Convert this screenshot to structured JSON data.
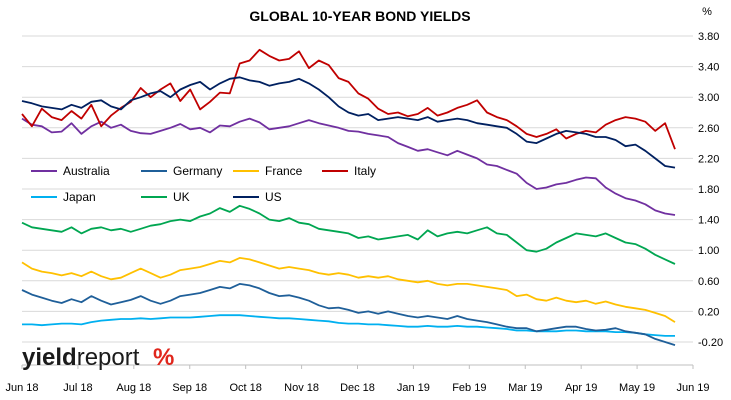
{
  "chart_data": {
    "type": "line",
    "title": "GLOBAL 10-YEAR BOND YIELDS",
    "unit": "%",
    "y_axis_position": "right",
    "ylim": [
      -0.4,
      3.9
    ],
    "y_ticks": [
      "3.80",
      "3.40",
      "3.00",
      "2.60",
      "2.20",
      "1.80",
      "1.40",
      "1.00",
      "0.60",
      "0.20",
      "-0.20"
    ],
    "x_tick_labels": [
      "Jun 18",
      "Jul 18",
      "Aug 18",
      "Sep 18",
      "Oct 18",
      "Nov 18",
      "Dec 18",
      "Jan 19",
      "Feb 19",
      "Mar 19",
      "Apr 19",
      "May 19",
      "Jun 19"
    ],
    "grid": "horizontal",
    "legend_position": "upper-left",
    "series": [
      {
        "name": "Australia",
        "color": "#7030A0",
        "values": [
          2.72,
          2.64,
          2.62,
          2.54,
          2.55,
          2.66,
          2.52,
          2.62,
          2.68,
          2.6,
          2.64,
          2.56,
          2.53,
          2.52,
          2.56,
          2.6,
          2.65,
          2.58,
          2.6,
          2.54,
          2.63,
          2.62,
          2.68,
          2.72,
          2.67,
          2.58,
          2.6,
          2.62,
          2.66,
          2.7,
          2.66,
          2.63,
          2.6,
          2.56,
          2.55,
          2.52,
          2.5,
          2.48,
          2.4,
          2.35,
          2.3,
          2.32,
          2.28,
          2.24,
          2.3,
          2.25,
          2.2,
          2.12,
          2.1,
          2.05,
          2.0,
          1.88,
          1.8,
          1.82,
          1.86,
          1.88,
          1.92,
          1.95,
          1.94,
          1.82,
          1.74,
          1.68,
          1.65,
          1.6,
          1.52,
          1.48,
          1.46
        ]
      },
      {
        "name": "Germany",
        "color": "#1F5F99",
        "values": [
          0.48,
          0.42,
          0.38,
          0.34,
          0.31,
          0.36,
          0.32,
          0.4,
          0.34,
          0.29,
          0.32,
          0.35,
          0.4,
          0.34,
          0.3,
          0.34,
          0.4,
          0.42,
          0.44,
          0.48,
          0.52,
          0.5,
          0.56,
          0.54,
          0.5,
          0.44,
          0.4,
          0.41,
          0.38,
          0.34,
          0.28,
          0.24,
          0.25,
          0.22,
          0.18,
          0.2,
          0.17,
          0.2,
          0.17,
          0.14,
          0.12,
          0.14,
          0.12,
          0.1,
          0.14,
          0.1,
          0.08,
          0.06,
          0.03,
          0.0,
          -0.02,
          -0.02,
          -0.06,
          -0.04,
          -0.02,
          0.0,
          0.0,
          -0.03,
          -0.05,
          -0.04,
          -0.02,
          -0.06,
          -0.08,
          -0.1,
          -0.16,
          -0.2,
          -0.24
        ]
      },
      {
        "name": "France",
        "color": "#FFC000",
        "values": [
          0.84,
          0.76,
          0.72,
          0.7,
          0.67,
          0.7,
          0.66,
          0.72,
          0.66,
          0.62,
          0.64,
          0.7,
          0.76,
          0.7,
          0.64,
          0.68,
          0.74,
          0.76,
          0.78,
          0.82,
          0.86,
          0.84,
          0.9,
          0.88,
          0.84,
          0.8,
          0.76,
          0.78,
          0.76,
          0.74,
          0.7,
          0.68,
          0.7,
          0.68,
          0.64,
          0.66,
          0.64,
          0.66,
          0.62,
          0.6,
          0.58,
          0.6,
          0.56,
          0.54,
          0.56,
          0.56,
          0.54,
          0.52,
          0.5,
          0.48,
          0.4,
          0.42,
          0.36,
          0.34,
          0.38,
          0.34,
          0.32,
          0.34,
          0.3,
          0.33,
          0.29,
          0.26,
          0.24,
          0.22,
          0.18,
          0.14,
          0.06
        ]
      },
      {
        "name": "Italy",
        "color": "#C00000",
        "values": [
          2.78,
          2.62,
          2.85,
          2.74,
          2.7,
          2.82,
          2.72,
          2.9,
          2.62,
          2.76,
          2.86,
          2.94,
          3.12,
          3.0,
          3.1,
          3.18,
          2.95,
          3.1,
          2.84,
          2.94,
          3.06,
          3.05,
          3.44,
          3.48,
          3.62,
          3.54,
          3.48,
          3.5,
          3.6,
          3.38,
          3.48,
          3.42,
          3.25,
          3.2,
          3.05,
          2.98,
          2.85,
          2.78,
          2.8,
          2.75,
          2.78,
          2.86,
          2.76,
          2.8,
          2.86,
          2.9,
          2.96,
          2.8,
          2.74,
          2.7,
          2.62,
          2.52,
          2.48,
          2.52,
          2.58,
          2.46,
          2.52,
          2.56,
          2.54,
          2.64,
          2.7,
          2.74,
          2.72,
          2.68,
          2.56,
          2.66,
          2.32
        ]
      },
      {
        "name": "Japan",
        "color": "#00B0F0",
        "values": [
          0.03,
          0.03,
          0.02,
          0.03,
          0.04,
          0.04,
          0.03,
          0.06,
          0.08,
          0.09,
          0.1,
          0.1,
          0.11,
          0.1,
          0.11,
          0.12,
          0.12,
          0.12,
          0.13,
          0.14,
          0.15,
          0.15,
          0.15,
          0.14,
          0.13,
          0.12,
          0.11,
          0.11,
          0.1,
          0.09,
          0.08,
          0.07,
          0.05,
          0.04,
          0.04,
          0.03,
          0.03,
          0.02,
          0.01,
          0.0,
          0.0,
          0.01,
          0.0,
          0.0,
          0.01,
          0.0,
          0.0,
          -0.01,
          -0.02,
          -0.03,
          -0.05,
          -0.05,
          -0.06,
          -0.06,
          -0.06,
          -0.05,
          -0.05,
          -0.06,
          -0.06,
          -0.06,
          -0.07,
          -0.07,
          -0.08,
          -0.1,
          -0.11,
          -0.12,
          -0.12
        ]
      },
      {
        "name": "UK",
        "color": "#00A651",
        "values": [
          1.36,
          1.3,
          1.28,
          1.26,
          1.24,
          1.3,
          1.22,
          1.28,
          1.3,
          1.26,
          1.28,
          1.24,
          1.28,
          1.32,
          1.34,
          1.38,
          1.4,
          1.38,
          1.44,
          1.48,
          1.55,
          1.5,
          1.58,
          1.54,
          1.48,
          1.4,
          1.38,
          1.42,
          1.36,
          1.34,
          1.28,
          1.26,
          1.24,
          1.22,
          1.16,
          1.18,
          1.14,
          1.16,
          1.18,
          1.2,
          1.14,
          1.26,
          1.18,
          1.22,
          1.24,
          1.22,
          1.26,
          1.3,
          1.22,
          1.2,
          1.1,
          1.0,
          0.98,
          1.02,
          1.1,
          1.16,
          1.22,
          1.2,
          1.18,
          1.22,
          1.16,
          1.1,
          1.08,
          1.02,
          0.94,
          0.88,
          0.82
        ]
      },
      {
        "name": "US",
        "color": "#002060",
        "values": [
          2.95,
          2.92,
          2.88,
          2.86,
          2.84,
          2.9,
          2.86,
          2.94,
          2.96,
          2.88,
          2.84,
          2.96,
          3.0,
          3.05,
          3.08,
          3.0,
          3.1,
          3.16,
          3.2,
          3.1,
          3.18,
          3.24,
          3.26,
          3.22,
          3.2,
          3.15,
          3.18,
          3.2,
          3.24,
          3.18,
          3.1,
          3.0,
          2.88,
          2.8,
          2.76,
          2.78,
          2.7,
          2.72,
          2.74,
          2.72,
          2.7,
          2.74,
          2.68,
          2.7,
          2.72,
          2.7,
          2.66,
          2.64,
          2.62,
          2.6,
          2.52,
          2.42,
          2.4,
          2.46,
          2.52,
          2.56,
          2.54,
          2.52,
          2.48,
          2.48,
          2.44,
          2.36,
          2.38,
          2.3,
          2.2,
          2.1,
          2.08
        ]
      }
    ]
  },
  "logo": {
    "part1": "yield",
    "part2": "report",
    "symbol": "%"
  }
}
